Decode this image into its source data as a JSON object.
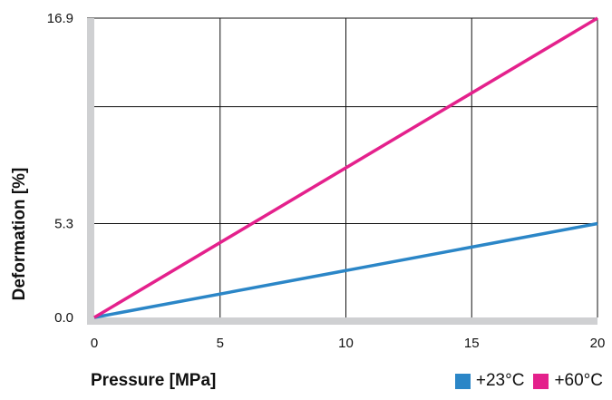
{
  "chart_data": {
    "type": "line",
    "xlabel": "Pressure [MPa]",
    "ylabel": "Deformation [%]",
    "x_ticks": [
      0,
      5,
      10,
      15,
      20
    ],
    "y_ticks": [
      0.0,
      5.3,
      16.9
    ],
    "y_tick_labels": [
      "0.0",
      "5.3",
      "16.9"
    ],
    "xlim": [
      0,
      20
    ],
    "ylim": [
      0,
      16.9
    ],
    "y_gridlines": [
      5.3,
      11.9,
      16.9
    ],
    "grid": true,
    "legend_placement": "bottom-right",
    "series": [
      {
        "name": "+23°C",
        "color": "#2b86c7",
        "x": [
          0,
          20
        ],
        "y": [
          0,
          5.3
        ]
      },
      {
        "name": "+60°C",
        "color": "#e4218c",
        "x": [
          0,
          20
        ],
        "y": [
          0,
          16.9
        ]
      }
    ]
  }
}
